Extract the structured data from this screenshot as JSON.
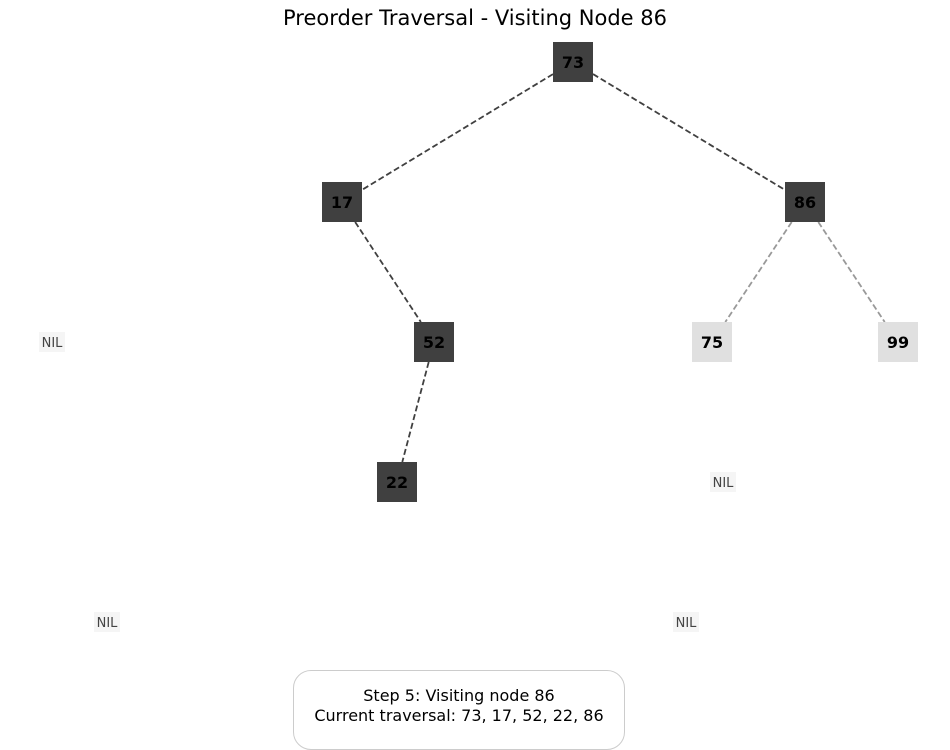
{
  "title": "Preorder Traversal - Visiting Node 86",
  "colors": {
    "visited_fill": "#404040",
    "unvisited_fill": "#e0e0e0",
    "nil_fill": "#f5f5f5",
    "visited_edge": "#404040",
    "unvisited_edge": "#999999"
  },
  "nodes": [
    {
      "id": "n73",
      "label": "73",
      "state": "visited"
    },
    {
      "id": "n17",
      "label": "17",
      "state": "visited"
    },
    {
      "id": "n86",
      "label": "86",
      "state": "visited"
    },
    {
      "id": "n52",
      "label": "52",
      "state": "visited"
    },
    {
      "id": "n75",
      "label": "75",
      "state": "unvisited"
    },
    {
      "id": "n99",
      "label": "99",
      "state": "unvisited"
    },
    {
      "id": "n22",
      "label": "22",
      "state": "visited"
    }
  ],
  "nil_labels": [
    {
      "id": "nil1",
      "label": "NIL"
    },
    {
      "id": "nil2",
      "label": "NIL"
    },
    {
      "id": "nil3",
      "label": "NIL"
    },
    {
      "id": "nil4",
      "label": "NIL"
    }
  ],
  "edges": [
    {
      "from": "n73",
      "to": "n17",
      "state": "visited"
    },
    {
      "from": "n73",
      "to": "n86",
      "state": "visited"
    },
    {
      "from": "n17",
      "to": "n52",
      "state": "visited"
    },
    {
      "from": "n52",
      "to": "n22",
      "state": "visited"
    },
    {
      "from": "n86",
      "to": "n75",
      "state": "unvisited"
    },
    {
      "from": "n86",
      "to": "n99",
      "state": "unvisited"
    }
  ],
  "status": {
    "step_line": "Step 5: Visiting node 86",
    "traversal_line": "Current traversal: 73, 17, 52, 22, 86"
  }
}
